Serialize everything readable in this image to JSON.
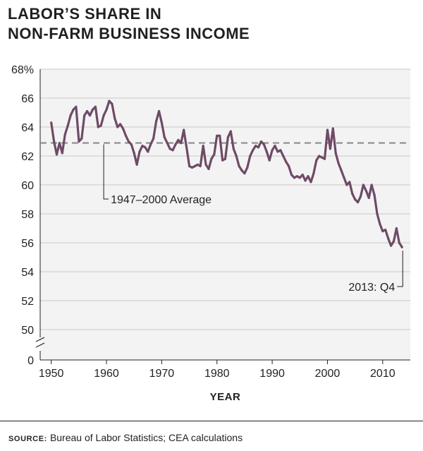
{
  "chart_data": {
    "type": "line",
    "title_lines": [
      "LABOR’S SHARE IN",
      "NON-FARM BUSINESS INCOME"
    ],
    "xlabel": "YEAR",
    "ylabel": "",
    "xlim": [
      1948,
      2015
    ],
    "ylim": [
      50,
      68
    ],
    "y_ticks": [
      68,
      66,
      64,
      62,
      60,
      58,
      56,
      54,
      52,
      50,
      0
    ],
    "y_tick_labels": [
      "68%",
      "66",
      "64",
      "62",
      "60",
      "58",
      "56",
      "54",
      "52",
      "50",
      "0"
    ],
    "x_ticks": [
      1950,
      1960,
      1970,
      1980,
      1990,
      2000,
      2010
    ],
    "x_tick_labels": [
      "1950",
      "1960",
      "1970",
      "1980",
      "1990",
      "2000",
      "2010"
    ],
    "axis_break": true,
    "grid": true,
    "colors": {
      "series": "#6e4b66",
      "average": "#8c8c8c",
      "text": "#231f20"
    },
    "series": [
      {
        "values": [
          [
            1950.0,
            64.3
          ],
          [
            1950.5,
            63.0
          ],
          [
            1951.0,
            62.1
          ],
          [
            1951.5,
            62.9
          ],
          [
            1952.0,
            62.2
          ],
          [
            1952.5,
            63.5
          ],
          [
            1953.0,
            64.1
          ],
          [
            1953.5,
            64.8
          ],
          [
            1954.0,
            65.2
          ],
          [
            1954.5,
            65.4
          ],
          [
            1955.0,
            63.0
          ],
          [
            1955.5,
            63.2
          ],
          [
            1956.0,
            64.8
          ],
          [
            1956.5,
            65.1
          ],
          [
            1957.0,
            64.8
          ],
          [
            1957.5,
            65.2
          ],
          [
            1958.0,
            65.4
          ],
          [
            1958.5,
            64.0
          ],
          [
            1959.0,
            64.1
          ],
          [
            1959.5,
            64.8
          ],
          [
            1960.0,
            65.2
          ],
          [
            1960.5,
            65.8
          ],
          [
            1961.0,
            65.6
          ],
          [
            1961.5,
            64.6
          ],
          [
            1962.0,
            64.0
          ],
          [
            1962.5,
            64.2
          ],
          [
            1963.0,
            63.9
          ],
          [
            1963.5,
            63.4
          ],
          [
            1964.0,
            63.0
          ],
          [
            1964.5,
            62.8
          ],
          [
            1965.0,
            62.2
          ],
          [
            1965.5,
            61.4
          ],
          [
            1966.0,
            62.3
          ],
          [
            1966.5,
            62.7
          ],
          [
            1967.0,
            62.6
          ],
          [
            1967.5,
            62.3
          ],
          [
            1968.0,
            62.8
          ],
          [
            1968.5,
            63.2
          ],
          [
            1969.0,
            64.4
          ],
          [
            1969.5,
            65.1
          ],
          [
            1970.0,
            64.3
          ],
          [
            1970.5,
            63.3
          ],
          [
            1971.0,
            62.9
          ],
          [
            1971.5,
            62.5
          ],
          [
            1972.0,
            62.4
          ],
          [
            1972.5,
            62.8
          ],
          [
            1973.0,
            63.1
          ],
          [
            1973.5,
            62.9
          ],
          [
            1974.0,
            63.8
          ],
          [
            1974.5,
            62.6
          ],
          [
            1975.0,
            61.3
          ],
          [
            1975.5,
            61.2
          ],
          [
            1976.0,
            61.3
          ],
          [
            1976.5,
            61.4
          ],
          [
            1977.0,
            61.3
          ],
          [
            1977.5,
            62.7
          ],
          [
            1978.0,
            61.4
          ],
          [
            1978.5,
            61.1
          ],
          [
            1979.0,
            61.8
          ],
          [
            1979.5,
            62.1
          ],
          [
            1980.0,
            63.4
          ],
          [
            1980.5,
            63.4
          ],
          [
            1981.0,
            61.7
          ],
          [
            1981.5,
            61.8
          ],
          [
            1982.0,
            63.3
          ],
          [
            1982.5,
            63.7
          ],
          [
            1983.0,
            62.5
          ],
          [
            1983.5,
            62.0
          ],
          [
            1984.0,
            61.3
          ],
          [
            1984.5,
            61.0
          ],
          [
            1985.0,
            60.8
          ],
          [
            1985.5,
            61.2
          ],
          [
            1986.0,
            62.0
          ],
          [
            1986.5,
            62.4
          ],
          [
            1987.0,
            62.7
          ],
          [
            1987.5,
            62.6
          ],
          [
            1988.0,
            63.0
          ],
          [
            1988.5,
            62.8
          ],
          [
            1989.0,
            62.3
          ],
          [
            1989.5,
            61.7
          ],
          [
            1990.0,
            62.4
          ],
          [
            1990.5,
            62.7
          ],
          [
            1991.0,
            62.3
          ],
          [
            1991.5,
            62.4
          ],
          [
            1992.0,
            62.0
          ],
          [
            1992.5,
            61.6
          ],
          [
            1993.0,
            61.3
          ],
          [
            1993.5,
            60.7
          ],
          [
            1994.0,
            60.5
          ],
          [
            1994.5,
            60.6
          ],
          [
            1995.0,
            60.5
          ],
          [
            1995.5,
            60.7
          ],
          [
            1996.0,
            60.3
          ],
          [
            1996.5,
            60.6
          ],
          [
            1997.0,
            60.2
          ],
          [
            1997.5,
            60.8
          ],
          [
            1998.0,
            61.7
          ],
          [
            1998.5,
            62.0
          ],
          [
            1999.0,
            61.9
          ],
          [
            1999.5,
            61.8
          ],
          [
            2000.0,
            63.8
          ],
          [
            2000.5,
            62.5
          ],
          [
            2001.0,
            63.9
          ],
          [
            2001.5,
            62.2
          ],
          [
            2002.0,
            61.5
          ],
          [
            2002.5,
            61.0
          ],
          [
            2003.0,
            60.5
          ],
          [
            2003.5,
            60.0
          ],
          [
            2004.0,
            60.2
          ],
          [
            2004.5,
            59.4
          ],
          [
            2005.0,
            59.0
          ],
          [
            2005.5,
            58.8
          ],
          [
            2006.0,
            59.2
          ],
          [
            2006.5,
            60.0
          ],
          [
            2007.0,
            59.6
          ],
          [
            2007.5,
            59.1
          ],
          [
            2008.0,
            60.0
          ],
          [
            2008.5,
            59.3
          ],
          [
            2009.0,
            58.0
          ],
          [
            2009.5,
            57.3
          ],
          [
            2010.0,
            56.8
          ],
          [
            2010.5,
            56.9
          ],
          [
            2011.0,
            56.3
          ],
          [
            2011.5,
            55.8
          ],
          [
            2012.0,
            56.1
          ],
          [
            2012.5,
            57.0
          ],
          [
            2013.0,
            56.0
          ],
          [
            2013.5,
            55.7
          ]
        ]
      }
    ],
    "reference_lines": [
      {
        "value": 62.9,
        "label": "1947–2000 Average",
        "style": "dashed"
      }
    ],
    "annotations": [
      {
        "text": "2013: Q4"
      }
    ],
    "source_label": "SOURCE:",
    "source_text": "Bureau of Labor Statistics; CEA calculations"
  }
}
